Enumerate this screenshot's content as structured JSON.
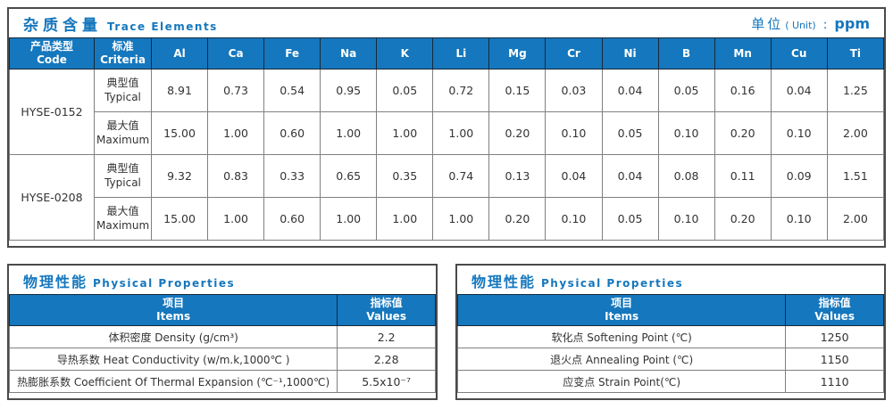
{
  "colors": {
    "accent_blue": "#1577bd",
    "header_divider": "#16293a",
    "grid_gray": "#808080",
    "frame_gray": "#4a4a4a",
    "text": "#333333"
  },
  "trace_table": {
    "title_zh": "杂质含量",
    "title_en": "Trace Elements",
    "unit_zh": "单位",
    "unit_en": "( Unit)",
    "unit_colon": ":",
    "unit_value": "ppm",
    "col_code_zh": "产品类型",
    "col_code_en": "Code",
    "col_criteria_zh": "标准",
    "col_criteria_en": "Criteria",
    "elements": [
      "Al",
      "Ca",
      "Fe",
      "Na",
      "K",
      "Li",
      "Mg",
      "Cr",
      "Ni",
      "B",
      "Mn",
      "Cu",
      "Ti"
    ],
    "products": [
      {
        "code": "HYSE-0152",
        "rows": [
          {
            "label_zh": "典型值",
            "label_en": "Typical",
            "values": [
              "8.91",
              "0.73",
              "0.54",
              "0.95",
              "0.05",
              "0.72",
              "0.15",
              "0.03",
              "0.04",
              "0.05",
              "0.16",
              "0.04",
              "1.25"
            ]
          },
          {
            "label_zh": "最大值",
            "label_en": "Maximum",
            "values": [
              "15.00",
              "1.00",
              "0.60",
              "1.00",
              "1.00",
              "1.00",
              "0.20",
              "0.10",
              "0.05",
              "0.10",
              "0.20",
              "0.10",
              "2.00"
            ]
          }
        ]
      },
      {
        "code": "HYSE-0208",
        "rows": [
          {
            "label_zh": "典型值",
            "label_en": "Typical",
            "values": [
              "9.32",
              "0.83",
              "0.33",
              "0.65",
              "0.35",
              "0.74",
              "0.13",
              "0.04",
              "0.04",
              "0.08",
              "0.11",
              "0.09",
              "1.51"
            ]
          },
          {
            "label_zh": "最大值",
            "label_en": "Maximum",
            "values": [
              "15.00",
              "1.00",
              "0.60",
              "1.00",
              "1.00",
              "1.00",
              "0.20",
              "0.10",
              "0.05",
              "0.10",
              "0.20",
              "0.10",
              "2.00"
            ]
          }
        ]
      }
    ]
  },
  "physical_tables": [
    {
      "title_zh": "物理性能",
      "title_en": "Physical Properties",
      "col_items_zh": "项目",
      "col_items_en": "Items",
      "col_values_zh": "指标值",
      "col_values_en": "Values",
      "rows": [
        {
          "item": "体积密度 Density (g/cm³)",
          "value": "2.2"
        },
        {
          "item": "导热系数 Heat Conductivity (w/m.k,1000℃ )",
          "value": "2.28"
        },
        {
          "item": "热膨胀系数 Coefficient Of Thermal Expansion (℃⁻¹,1000℃)",
          "value": "5.5x10⁻⁷"
        }
      ]
    },
    {
      "title_zh": "物理性能",
      "title_en": "Physical Properties",
      "col_items_zh": "项目",
      "col_items_en": "Items",
      "col_values_zh": "指标值",
      "col_values_en": "Values",
      "rows": [
        {
          "item": "软化点 Softening Point (℃)",
          "value": "1250"
        },
        {
          "item": "退火点 Annealing Point (℃)",
          "value": "1150"
        },
        {
          "item": "应变点 Strain Point(℃)",
          "value": "1110"
        }
      ]
    }
  ]
}
